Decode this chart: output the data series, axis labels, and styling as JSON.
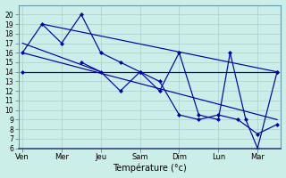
{
  "background_color": "#cceee8",
  "grid_color": "#aacccc",
  "line_color": "#0000aa",
  "xlabel": "Température (°c)",
  "ylim": [
    6,
    21
  ],
  "ytick_min": 6,
  "ytick_max": 20,
  "x_labels": [
    "Ven",
    "Mer",
    "Jeu",
    "Sam",
    "Dim",
    "Lun",
    "Mar"
  ],
  "x_tick_positions": [
    0,
    1,
    2,
    3,
    4,
    5,
    6
  ],
  "xlim": [
    -0.1,
    6.6
  ],
  "lines": [
    {
      "x": [
        0,
        6.5
      ],
      "y": [
        14,
        14
      ],
      "marker": true
    },
    {
      "x": [
        0.5,
        6.5
      ],
      "y": [
        19,
        14
      ],
      "marker": false
    },
    {
      "x": [
        0,
        6.5
      ],
      "y": [
        16,
        9
      ],
      "marker": false
    },
    {
      "x": [
        0,
        2.0
      ],
      "y": [
        17,
        14
      ],
      "marker": false
    },
    {
      "x": [
        0,
        0.5,
        1,
        1.5,
        2,
        2.5,
        3,
        3.5,
        4,
        4.5,
        5,
        5.3,
        5.7,
        6.0,
        6.5
      ],
      "y": [
        16,
        19,
        17,
        20,
        16,
        15,
        14,
        12,
        16,
        9.5,
        9,
        16,
        9,
        6,
        14
      ],
      "marker": true
    },
    {
      "x": [
        1.5,
        2,
        2.5,
        3,
        3.5,
        4,
        4.5,
        5,
        5.5,
        6,
        6.5
      ],
      "y": [
        15,
        14,
        12,
        14,
        13,
        9.5,
        9,
        9.5,
        9,
        7.5,
        8.5
      ],
      "marker": true
    }
  ]
}
